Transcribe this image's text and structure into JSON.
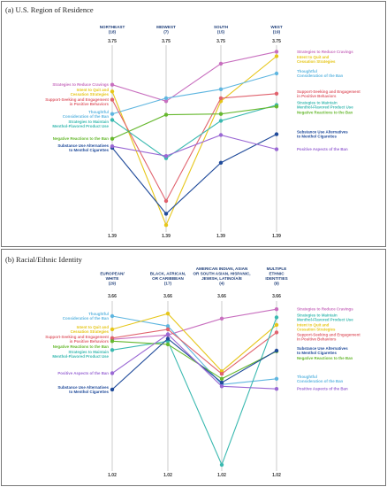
{
  "chart_data": [
    {
      "type": "line",
      "title": "(a) U.S. Region of Residence",
      "categories": [
        [
          "NORTHEAST",
          "(18)"
        ],
        [
          "MIDWEST",
          "(7)"
        ],
        [
          "SOUTH",
          "(15)"
        ],
        [
          "WEST",
          "(19)"
        ]
      ],
      "ylim": [
        1.39,
        3.75
      ],
      "ytick_top": "3.75",
      "ytick_bottom": "1.39",
      "series": [
        {
          "name": "Strategies to Reduce Cravings",
          "color": "#c86fbf",
          "values": [
            3.27,
            3.05,
            3.55,
            3.71
          ],
          "label_left": "Strategies to Reduce Cravings",
          "label_right": "Strategies to Reduce Cravings"
        },
        {
          "name": "Intent to Quit and Cessation Strategies",
          "color": "#e6c619",
          "values": [
            3.18,
            1.4,
            3.05,
            3.65
          ],
          "label_left": "Intent to Quit and Cessation Strategies",
          "label_right": "Intent to Quit and Cessation Strategies"
        },
        {
          "name": "Thoughtful Consideration of the Ban",
          "color": "#5fb6e0",
          "values": [
            2.88,
            3.09,
            3.21,
            3.42
          ],
          "label_left": "Thoughtful Consideration of the Ban",
          "label_right": "Thoughtful Consideration of the Ban"
        },
        {
          "name": "Support-Seeking and Engagement in Positive Behaviors",
          "color": "#e0626d",
          "values": [
            3.07,
            1.72,
            3.09,
            3.15
          ],
          "label_left": "Support-Seeking and Engagement in Positive Behaviors",
          "label_right": "Support-Seeking and Engagement in Positive Behaviors"
        },
        {
          "name": "Strategies to Maintain Menthol-Flavored Product Use",
          "color": "#3ab9b0",
          "values": [
            2.8,
            2.29,
            2.79,
            3.0
          ],
          "label_left": "Strategies to Maintain Menthol-Flavored Product Use",
          "label_right": "Strategies to Maintain Menthol-Flavored Product Use"
        },
        {
          "name": "Negative Reactions to the Ban",
          "color": "#66b82e",
          "values": [
            2.55,
            2.87,
            2.88,
            2.98
          ],
          "label_left": "Negative Reactions to the Ban",
          "label_right": "Negative Reactions to the Ban"
        },
        {
          "name": "Substance Use Alternatives to Menthol Cigarettes",
          "color": "#1f4a9a",
          "values": [
            2.43,
            1.55,
            2.23,
            2.61
          ],
          "label_left": "Substance Use Alternatives to Menthol Cigarettes",
          "label_right": "Substance Use Alternatives to Menthol Cigarettes"
        },
        {
          "name": "Positive Aspects of the Ban",
          "color": "#9a68d4",
          "values": [
            2.45,
            2.32,
            2.6,
            2.41
          ],
          "label_left": "",
          "label_right": "Positive Aspects of the Ban"
        }
      ]
    },
    {
      "type": "line",
      "title": "(b) Racial/Ethnic Identity",
      "categories": [
        [
          "EUROPEAN/",
          "WHITE",
          "(29)"
        ],
        [
          "BLACK, AFRICAN,",
          "OR CARIBBEAN",
          "(17)"
        ],
        [
          "AMERICAN INDIAN, ASIAN",
          "OR SOUTH ASIAN, HISPANIC,",
          "JEWISH, LATINO/A/E",
          "(4)"
        ],
        [
          "MULTIPLE",
          "ETHNIC",
          "IDENTITIES",
          "(9)"
        ]
      ],
      "ylim": [
        1.02,
        3.66
      ],
      "ytick_top": "3.66",
      "ytick_bottom": "1.02",
      "series": [
        {
          "name": "Strategies to Reduce Cravings",
          "color": "#c86fbf",
          "values": [
            3.05,
            3.12,
            3.38,
            3.53
          ],
          "label_left": "",
          "label_right": "Strategies to Reduce Cravings"
        },
        {
          "name": "Thoughtful Consideration of the Ban",
          "color": "#5fb6e0",
          "values": [
            3.42,
            3.26,
            2.33,
            2.42
          ],
          "label_left": "Thoughtful Consideration of the Ban",
          "label_right": "Thoughtful Consideration of the Ban"
        },
        {
          "name": "Intent to Quit and Cessation Strategies",
          "color": "#e6c619",
          "values": [
            3.21,
            3.46,
            2.54,
            3.28
          ],
          "label_left": "Intent to Quit and Cessation Strategies",
          "label_right": "Intent to Quit and Cessation Strategies"
        },
        {
          "name": "Support-Seeking and Engagement in Positive Behaviors",
          "color": "#e0626d",
          "values": [
            3.07,
            3.21,
            2.5,
            3.16
          ],
          "label_left": "Support-Seeking and Engagement in Positive Behaviors",
          "label_right": "Support-Seeking and Engagement in Positive Behaviors"
        },
        {
          "name": "Strategies to Maintain Menthol-Flavored Product Use",
          "color": "#3ab9b0",
          "values": [
            2.88,
            3.02,
            1.05,
            3.4
          ],
          "label_left": "Strategies to Maintain Menthol-Flavored Product Use",
          "label_right": "Strategies to Maintain Menthol-Flavored Product Use"
        },
        {
          "name": "Negative Reactions to the Ban",
          "color": "#66b82e",
          "values": [
            3.02,
            2.97,
            2.42,
            2.86
          ],
          "label_left": "Negative Reactions to the Ban",
          "label_right": "Negative Reactions to the Ban"
        },
        {
          "name": "Substance Use Alternatives to Menthol Cigarettes",
          "color": "#1f4a9a",
          "values": [
            2.25,
            3.06,
            2.36,
            2.87
          ],
          "label_left": "Substance Use Alternatives to Menthol Cigarettes",
          "label_right": "Substance Use Alternatives to Menthol Cigarettes"
        },
        {
          "name": "Positive Aspects of the Ban",
          "color": "#9a68d4",
          "values": [
            2.51,
            3.13,
            2.3,
            2.26
          ],
          "label_left": "Positive Aspects of the Ban",
          "label_right": "Positive Aspects of the Ban"
        }
      ]
    }
  ]
}
